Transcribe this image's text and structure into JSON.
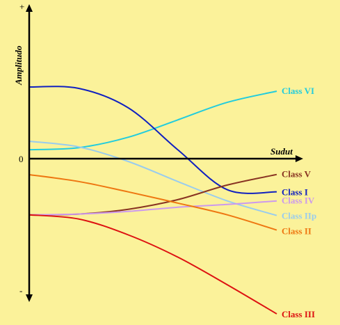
{
  "chart_data": {
    "type": "line",
    "xlabel": "Sudut",
    "ylabel": "Amplitudo",
    "y_tick_labels": {
      "top": "+",
      "zero": "0",
      "bottom": "-"
    },
    "xlim": [
      0,
      1
    ],
    "ylim": [
      -1,
      1
    ],
    "grid": false,
    "legend": "inline labels at right end of each line",
    "series": [
      {
        "name": "Class VI",
        "color": "#22ccdd",
        "x": [
          0,
          0.2,
          0.4,
          0.6,
          0.8,
          1.0
        ],
        "y": [
          0.058,
          0.071,
          0.138,
          0.25,
          0.363,
          0.435
        ]
      },
      {
        "name": "Class I",
        "color": "#1020c0",
        "x": [
          0,
          0.2,
          0.4,
          0.6,
          0.8,
          1.0
        ],
        "y": [
          0.462,
          0.453,
          0.328,
          0.058,
          -0.2,
          -0.214
        ]
      },
      {
        "name": "Class IIp",
        "color": "#99ccee",
        "x": [
          0,
          0.2,
          0.4,
          0.6,
          0.8,
          1.0
        ],
        "y": [
          0.112,
          0.076,
          -0.018,
          -0.147,
          -0.272,
          -0.366
        ]
      },
      {
        "name": "Class V",
        "color": "#883322",
        "x": [
          0,
          0.2,
          0.4,
          0.6,
          0.8,
          1.0
        ],
        "y": [
          -0.362,
          -0.357,
          -0.326,
          -0.264,
          -0.17,
          -0.102
        ]
      },
      {
        "name": "Class IV",
        "color": "#cc99ee",
        "x": [
          0,
          0.2,
          0.4,
          0.6,
          0.8,
          1.0
        ],
        "y": [
          -0.362,
          -0.357,
          -0.34,
          -0.313,
          -0.295,
          -0.272
        ]
      },
      {
        "name": "Class II",
        "color": "#ee7711",
        "x": [
          0,
          0.2,
          0.4,
          0.6,
          0.8,
          1.0
        ],
        "y": [
          -0.103,
          -0.147,
          -0.214,
          -0.286,
          -0.362,
          -0.46
        ]
      },
      {
        "name": "Class III",
        "color": "#dd1111",
        "x": [
          0,
          0.2,
          0.4,
          0.6,
          0.8,
          1.0
        ],
        "y": [
          -0.362,
          -0.389,
          -0.491,
          -0.634,
          -0.812,
          -1.0
        ]
      }
    ]
  }
}
